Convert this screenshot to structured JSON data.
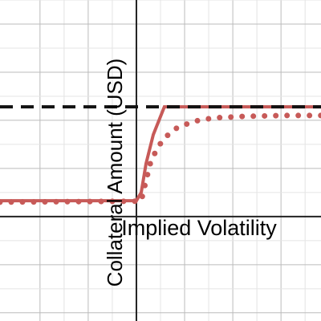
{
  "chart_data": {
    "type": "line",
    "x_label": "Implied Volatility",
    "y_label": "Collateral Amount (USD)",
    "xlim": [
      -2.83,
      3.83
    ],
    "ylim": [
      -2.17,
      4.5
    ],
    "grid": true,
    "series": [
      {
        "color": "#c75a58",
        "style": "solid",
        "x": [
          -2.83,
          0,
          0.1,
          0.2,
          0.35,
          0.58,
          3.83
        ],
        "values": [
          0.33,
          0.33,
          0.5,
          1.1,
          1.7,
          2.28,
          2.28
        ]
      },
      {
        "color": "#c75a58",
        "style": "dotted",
        "x": [
          -2.83,
          0.1,
          0.2,
          0.3,
          0.45,
          0.6,
          0.85,
          1.2,
          1.6,
          2.2,
          3,
          3.83
        ],
        "values": [
          0.3,
          0.32,
          0.75,
          1.15,
          1.45,
          1.65,
          1.85,
          1.98,
          2.05,
          2.08,
          2.1,
          2.1
        ]
      },
      {
        "color": "#111111",
        "style": "dashed",
        "x": [
          -2.83,
          3.83
        ],
        "values": [
          2.28,
          2.28
        ]
      }
    ]
  }
}
